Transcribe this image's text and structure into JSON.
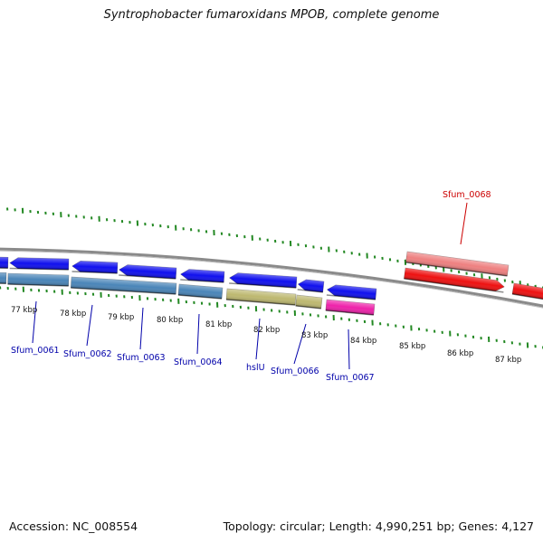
{
  "title": "Syntrophobacter fumaroxidans MPOB, complete genome",
  "footer": {
    "accession": "Accession: NC_008554",
    "summary": "Topology: circular; Length: 4,990,251 bp; Genes: 4,127"
  },
  "colors": {
    "cds_strand_minus": "#1010ee",
    "gene_track": "#4a85b8",
    "hslU_gene": "#bdb870",
    "rrna_pink": "#ee22aa",
    "red_feature": "#ee1111",
    "red_feature_light": "#ee8080",
    "backbone": "#888888",
    "tick_green": "#228822",
    "label_blue": "#0000aa",
    "label_red": "#cc0000"
  },
  "scale": {
    "unit": "kbp",
    "ticks": [
      {
        "value": 77,
        "label": "77 kbp"
      },
      {
        "value": 78,
        "label": "78 kbp"
      },
      {
        "value": 79,
        "label": "79 kbp"
      },
      {
        "value": 80,
        "label": "80 kbp"
      },
      {
        "value": 81,
        "label": "81 kbp"
      },
      {
        "value": 82,
        "label": "82 kbp"
      },
      {
        "value": 83,
        "label": "83 kbp"
      },
      {
        "value": 84,
        "label": "84 kbp"
      },
      {
        "value": 85,
        "label": "85 kbp"
      },
      {
        "value": 86,
        "label": "86 kbp"
      },
      {
        "value": 87,
        "label": "87 kbp"
      }
    ]
  },
  "gene_labels": [
    {
      "name": "Sfum_0061",
      "color": "blue"
    },
    {
      "name": "Sfum_0062",
      "color": "blue"
    },
    {
      "name": "Sfum_0063",
      "color": "blue"
    },
    {
      "name": "Sfum_0064",
      "color": "blue"
    },
    {
      "name": "hslU",
      "color": "blue"
    },
    {
      "name": "Sfum_0066",
      "color": "blue"
    },
    {
      "name": "Sfum_0067",
      "color": "blue"
    },
    {
      "name": "Sfum_0068",
      "color": "red"
    }
  ]
}
